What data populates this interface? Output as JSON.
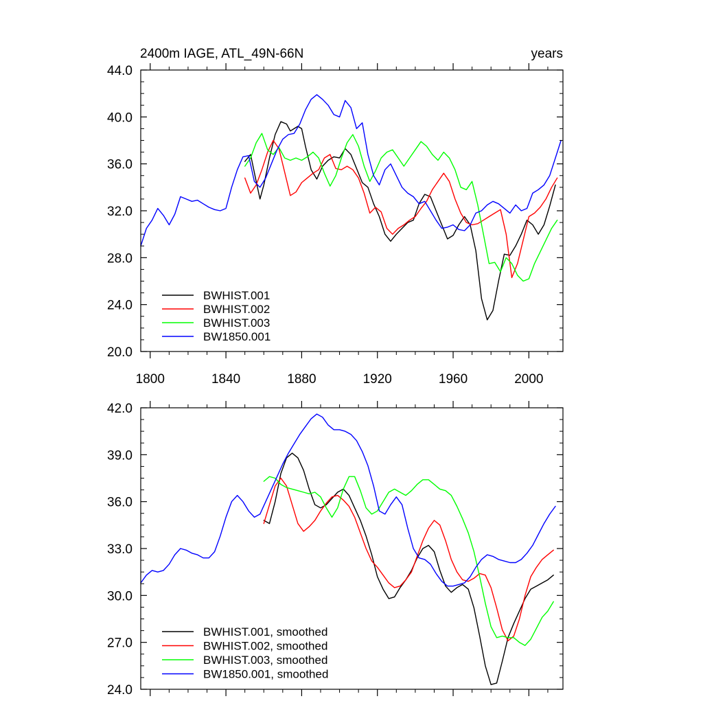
{
  "chart_data": [
    {
      "type": "line",
      "title": "2400m IAGE, ATL_49N-66N",
      "units": "years",
      "xlim": [
        1795,
        2018
      ],
      "ylim": [
        20,
        44
      ],
      "xticks": [
        1800,
        1840,
        1880,
        1920,
        1960,
        2000
      ],
      "yticks": [
        20,
        24,
        28,
        32,
        36,
        40,
        44
      ],
      "ytick_labels": [
        "20.0",
        "24.0",
        "28.0",
        "32.0",
        "36.0",
        "40.0",
        "44.0"
      ],
      "series": [
        {
          "name": "BWHIST.001",
          "color": "#000000",
          "x": [
            1850,
            1853,
            1856,
            1858,
            1860,
            1863,
            1866,
            1869,
            1872,
            1874,
            1876,
            1878,
            1880,
            1882,
            1885,
            1888,
            1891,
            1894,
            1897,
            1900,
            1903,
            1906,
            1909,
            1912,
            1915,
            1918,
            1921,
            1924,
            1927,
            1930,
            1933,
            1936,
            1939,
            1942,
            1945,
            1948,
            1951,
            1954,
            1957,
            1960,
            1963,
            1966,
            1969,
            1972,
            1975,
            1978,
            1981,
            1984,
            1987,
            1990,
            1993,
            1996,
            1999,
            2002,
            2005,
            2008,
            2011,
            2014
          ],
          "y": [
            36.2,
            36.8,
            34.5,
            33.0,
            34.2,
            36.5,
            38.5,
            39.6,
            39.4,
            38.8,
            39.0,
            39.2,
            39.0,
            37.5,
            35.5,
            34.7,
            35.8,
            36.3,
            36.6,
            36.5,
            37.3,
            36.8,
            35.6,
            34.4,
            34.0,
            32.6,
            31.5,
            30.0,
            29.4,
            30.0,
            30.5,
            31.0,
            31.2,
            32.6,
            33.4,
            33.2,
            32.0,
            30.8,
            29.6,
            29.9,
            30.8,
            31.5,
            30.8,
            28.6,
            24.5,
            22.7,
            23.5,
            26.0,
            28.3,
            28.2,
            29.0,
            30.0,
            31.2,
            30.8,
            30.0,
            30.8,
            32.4,
            34.2
          ]
        },
        {
          "name": "BWHIST.002",
          "color": "#ff0000",
          "x": [
            1850,
            1853,
            1856,
            1859,
            1862,
            1865,
            1868,
            1871,
            1874,
            1877,
            1880,
            1883,
            1886,
            1889,
            1892,
            1895,
            1898,
            1901,
            1904,
            1907,
            1910,
            1913,
            1916,
            1919,
            1922,
            1925,
            1928,
            1931,
            1934,
            1937,
            1940,
            1943,
            1946,
            1949,
            1952,
            1955,
            1958,
            1961,
            1964,
            1967,
            1970,
            1973,
            1976,
            1979,
            1982,
            1985,
            1988,
            1991,
            1994,
            1997,
            2000,
            2003,
            2006,
            2009,
            2012,
            2015
          ],
          "y": [
            34.8,
            33.5,
            34.2,
            35.5,
            37.0,
            38.0,
            37.3,
            35.3,
            33.3,
            33.6,
            34.4,
            34.8,
            35.2,
            35.5,
            36.5,
            36.8,
            35.6,
            35.5,
            35.8,
            35.5,
            34.8,
            33.5,
            31.8,
            32.3,
            31.9,
            30.5,
            30.0,
            30.5,
            30.8,
            31.2,
            31.5,
            32.2,
            32.8,
            33.8,
            34.5,
            35.2,
            34.5,
            33.0,
            31.8,
            31.0,
            30.8,
            30.9,
            31.2,
            31.5,
            31.8,
            32.1,
            30.0,
            26.3,
            27.5,
            29.5,
            31.5,
            31.8,
            32.3,
            33.0,
            34.0,
            34.8
          ]
        },
        {
          "name": "BWHIST.003",
          "color": "#00ff00",
          "x": [
            1850,
            1853,
            1856,
            1859,
            1862,
            1865,
            1868,
            1871,
            1874,
            1877,
            1880,
            1883,
            1886,
            1889,
            1892,
            1895,
            1898,
            1901,
            1904,
            1907,
            1910,
            1913,
            1916,
            1919,
            1922,
            1925,
            1928,
            1931,
            1934,
            1937,
            1940,
            1943,
            1946,
            1949,
            1952,
            1955,
            1958,
            1961,
            1964,
            1967,
            1970,
            1973,
            1976,
            1979,
            1982,
            1985,
            1988,
            1991,
            1994,
            1997,
            2000,
            2003,
            2006,
            2009,
            2012,
            2015
          ],
          "y": [
            35.8,
            36.5,
            37.8,
            38.6,
            37.2,
            36.8,
            37.4,
            36.5,
            36.3,
            36.5,
            36.3,
            36.6,
            37.0,
            36.5,
            35.2,
            34.1,
            35.0,
            36.5,
            37.8,
            38.5,
            37.5,
            35.8,
            34.5,
            35.4,
            36.5,
            37.0,
            37.2,
            36.5,
            35.8,
            36.5,
            37.2,
            37.9,
            37.5,
            36.8,
            36.3,
            37.0,
            36.5,
            35.5,
            34.0,
            33.8,
            34.5,
            32.5,
            30.0,
            27.5,
            27.6,
            26.8,
            28.0,
            27.5,
            26.5,
            26.0,
            26.2,
            27.5,
            28.5,
            29.5,
            30.5,
            31.2
          ]
        },
        {
          "name": "BW1850.001",
          "color": "#0000ff",
          "x": [
            1795,
            1798,
            1801,
            1804,
            1807,
            1810,
            1813,
            1816,
            1819,
            1822,
            1825,
            1828,
            1831,
            1834,
            1837,
            1840,
            1843,
            1846,
            1849,
            1852,
            1855,
            1858,
            1861,
            1864,
            1867,
            1870,
            1873,
            1876,
            1879,
            1882,
            1885,
            1888,
            1891,
            1894,
            1897,
            1900,
            1903,
            1906,
            1909,
            1912,
            1915,
            1918,
            1921,
            1924,
            1927,
            1930,
            1933,
            1936,
            1939,
            1942,
            1945,
            1948,
            1951,
            1954,
            1957,
            1960,
            1963,
            1966,
            1969,
            1972,
            1975,
            1978,
            1981,
            1984,
            1987,
            1990,
            1993,
            1996,
            1999,
            2002,
            2005,
            2008,
            2011,
            2014,
            2017
          ],
          "y": [
            29.0,
            30.5,
            31.2,
            32.2,
            31.6,
            30.8,
            31.7,
            33.2,
            33.0,
            32.8,
            32.9,
            32.6,
            32.3,
            32.1,
            32.0,
            32.2,
            34.0,
            35.5,
            36.6,
            36.7,
            34.5,
            34.0,
            34.8,
            36.0,
            37.2,
            38.1,
            38.5,
            38.6,
            39.4,
            40.6,
            41.5,
            41.9,
            41.5,
            41.0,
            40.2,
            40.0,
            41.4,
            40.8,
            39.0,
            39.5,
            36.8,
            35.0,
            34.2,
            35.5,
            36.0,
            35.0,
            34.0,
            33.5,
            33.2,
            32.6,
            32.8,
            32.0,
            31.2,
            30.5,
            30.6,
            30.8,
            30.4,
            30.3,
            30.8,
            31.8,
            32.0,
            32.5,
            32.8,
            32.6,
            32.2,
            31.8,
            32.5,
            32.0,
            32.2,
            33.5,
            33.8,
            34.2,
            35.0,
            36.5,
            38.0
          ]
        }
      ],
      "legend": [
        "BWHIST.001",
        "BWHIST.002",
        "BWHIST.003",
        "BW1850.001"
      ],
      "legend_position": "bottom-left"
    },
    {
      "type": "line",
      "title": "",
      "xlim": [
        1795,
        2018
      ],
      "ylim": [
        24,
        42
      ],
      "xticks": [
        1800,
        1840,
        1880,
        1920,
        1960,
        2000
      ],
      "yticks": [
        24,
        27,
        30,
        33,
        36,
        39,
        42
      ],
      "ytick_labels": [
        "24.0",
        "27.0",
        "30.0",
        "33.0",
        "36.0",
        "39.0",
        "42.0"
      ],
      "series": [
        {
          "name": "BWHIST.001, smoothed",
          "color": "#000000",
          "x": [
            1860,
            1863,
            1866,
            1869,
            1872,
            1875,
            1878,
            1881,
            1884,
            1887,
            1890,
            1893,
            1896,
            1899,
            1902,
            1905,
            1908,
            1911,
            1914,
            1917,
            1920,
            1923,
            1926,
            1929,
            1932,
            1935,
            1938,
            1941,
            1944,
            1947,
            1950,
            1953,
            1956,
            1959,
            1962,
            1965,
            1968,
            1971,
            1974,
            1977,
            1980,
            1983,
            1986,
            1989,
            1992,
            1995,
            1998,
            2001,
            2004,
            2007,
            2010,
            2013
          ],
          "y": [
            34.8,
            34.6,
            36.0,
            37.8,
            38.8,
            39.1,
            38.8,
            38.0,
            36.8,
            35.8,
            35.6,
            35.8,
            36.2,
            36.6,
            36.8,
            36.4,
            35.6,
            34.8,
            33.8,
            32.6,
            31.2,
            30.4,
            29.8,
            29.9,
            30.5,
            31.0,
            31.6,
            32.4,
            33.0,
            33.2,
            32.8,
            31.6,
            30.6,
            30.2,
            30.5,
            30.7,
            30.4,
            29.2,
            27.4,
            25.5,
            24.3,
            24.4,
            25.8,
            27.3,
            28.2,
            29.0,
            29.8,
            30.4,
            30.6,
            30.8,
            31.0,
            31.3
          ]
        },
        {
          "name": "BWHIST.002, smoothed",
          "color": "#ff0000",
          "x": [
            1860,
            1863,
            1866,
            1869,
            1872,
            1875,
            1878,
            1881,
            1884,
            1887,
            1890,
            1893,
            1896,
            1899,
            1902,
            1905,
            1908,
            1911,
            1914,
            1917,
            1920,
            1923,
            1926,
            1929,
            1932,
            1935,
            1938,
            1941,
            1944,
            1947,
            1950,
            1953,
            1956,
            1959,
            1962,
            1965,
            1968,
            1971,
            1974,
            1977,
            1980,
            1983,
            1986,
            1989,
            1992,
            1995,
            1998,
            2001,
            2004,
            2007,
            2010,
            2013
          ],
          "y": [
            34.6,
            35.8,
            37.0,
            37.5,
            37.0,
            35.8,
            34.6,
            34.1,
            34.4,
            34.8,
            35.4,
            35.9,
            36.3,
            36.4,
            36.1,
            35.7,
            35.0,
            34.0,
            33.0,
            32.2,
            31.8,
            31.3,
            30.8,
            30.5,
            30.6,
            31.0,
            31.5,
            32.5,
            33.5,
            34.3,
            34.8,
            34.5,
            33.5,
            32.3,
            31.5,
            31.0,
            30.9,
            31.1,
            31.4,
            31.3,
            30.5,
            29.2,
            27.8,
            27.1,
            27.4,
            28.5,
            30.0,
            31.2,
            31.8,
            32.3,
            32.6,
            32.9
          ]
        },
        {
          "name": "BWHIST.003, smoothed",
          "color": "#00ff00",
          "x": [
            1860,
            1863,
            1866,
            1869,
            1872,
            1875,
            1878,
            1881,
            1884,
            1887,
            1890,
            1893,
            1896,
            1899,
            1902,
            1905,
            1908,
            1911,
            1914,
            1917,
            1920,
            1923,
            1926,
            1929,
            1932,
            1935,
            1938,
            1941,
            1944,
            1947,
            1950,
            1953,
            1956,
            1959,
            1962,
            1965,
            1968,
            1971,
            1974,
            1977,
            1980,
            1983,
            1986,
            1989,
            1992,
            1995,
            1998,
            2001,
            2004,
            2007,
            2010,
            2013
          ],
          "y": [
            37.3,
            37.6,
            37.5,
            37.1,
            36.9,
            36.8,
            36.7,
            36.6,
            36.5,
            36.6,
            36.3,
            35.6,
            35.0,
            35.6,
            36.8,
            37.6,
            37.6,
            36.7,
            35.6,
            35.2,
            35.4,
            36.0,
            36.6,
            36.8,
            36.6,
            36.4,
            36.7,
            37.1,
            37.4,
            37.4,
            37.1,
            36.8,
            36.7,
            36.4,
            35.7,
            34.9,
            34.0,
            32.8,
            31.2,
            29.5,
            28.0,
            27.3,
            27.4,
            27.3,
            27.3,
            27.0,
            26.8,
            27.2,
            27.9,
            28.6,
            29.0,
            29.6
          ]
        },
        {
          "name": "BW1850.001, smoothed",
          "color": "#0000ff",
          "x": [
            1795,
            1798,
            1801,
            1804,
            1807,
            1810,
            1813,
            1816,
            1819,
            1822,
            1825,
            1828,
            1831,
            1834,
            1837,
            1840,
            1843,
            1846,
            1849,
            1852,
            1855,
            1858,
            1861,
            1864,
            1867,
            1870,
            1873,
            1876,
            1879,
            1882,
            1885,
            1888,
            1891,
            1894,
            1897,
            1900,
            1903,
            1906,
            1909,
            1912,
            1915,
            1918,
            1921,
            1924,
            1927,
            1930,
            1933,
            1936,
            1939,
            1942,
            1945,
            1948,
            1951,
            1954,
            1957,
            1960,
            1963,
            1966,
            1969,
            1972,
            1975,
            1978,
            1981,
            1984,
            1987,
            1990,
            1993,
            1996,
            1999,
            2002,
            2005,
            2008,
            2011,
            2014
          ],
          "y": [
            30.8,
            31.3,
            31.6,
            31.5,
            31.6,
            32.0,
            32.6,
            33.0,
            32.9,
            32.7,
            32.6,
            32.4,
            32.4,
            32.8,
            33.8,
            35.0,
            36.0,
            36.4,
            36.0,
            35.4,
            35.0,
            35.2,
            36.0,
            36.8,
            37.6,
            38.4,
            39.1,
            39.7,
            40.3,
            40.8,
            41.3,
            41.6,
            41.4,
            40.9,
            40.6,
            40.6,
            40.5,
            40.3,
            39.9,
            39.2,
            38.3,
            37.0,
            35.4,
            35.2,
            35.8,
            36.3,
            35.8,
            34.3,
            33.0,
            32.4,
            32.3,
            32.0,
            31.4,
            30.9,
            30.6,
            30.6,
            30.7,
            30.8,
            31.2,
            31.8,
            32.3,
            32.6,
            32.5,
            32.3,
            32.2,
            32.1,
            32.1,
            32.3,
            32.7,
            33.2,
            33.9,
            34.6,
            35.2,
            35.7
          ]
        }
      ],
      "legend": [
        "BWHIST.001, smoothed",
        "BWHIST.002, smoothed",
        "BWHIST.003, smoothed",
        "BW1850.001, smoothed"
      ],
      "legend_position": "bottom-left"
    }
  ]
}
